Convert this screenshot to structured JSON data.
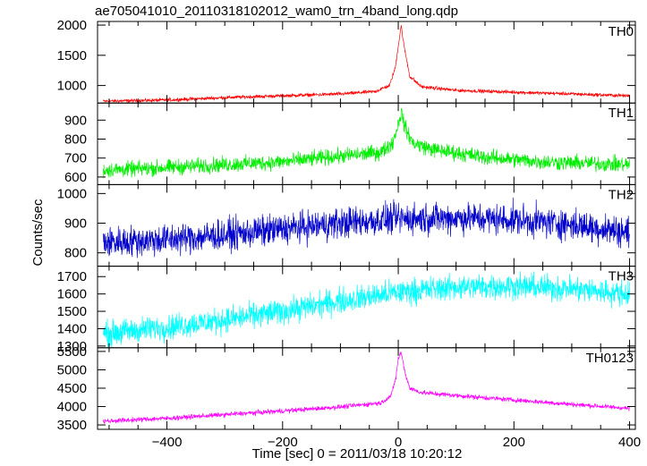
{
  "chart_data": {
    "type": "line",
    "title": "ae705041010_20110318102012_wam0_trn_4band_long.qdp",
    "xlabel": "Time [sec] 0 = 2011/03/18 10:20:12",
    "ylabel": "Counts/sec",
    "xlim": [
      -520,
      410
    ],
    "xticks": [
      -400,
      -200,
      0,
      200,
      400
    ],
    "grid": false,
    "panels": [
      {
        "name": "TH0",
        "color": "#ff0000",
        "ylim": [
          710,
          2060
        ],
        "yticks": [
          1000,
          1500,
          2000
        ],
        "noise": 18,
        "points": [
          [
            -510,
            740
          ],
          [
            -400,
            760
          ],
          [
            -300,
            800
          ],
          [
            -200,
            830
          ],
          [
            -100,
            860
          ],
          [
            -40,
            900
          ],
          [
            -15,
            1000
          ],
          [
            -5,
            1300
          ],
          [
            0,
            1650
          ],
          [
            5,
            2000
          ],
          [
            10,
            1650
          ],
          [
            20,
            1150
          ],
          [
            40,
            980
          ],
          [
            100,
            920
          ],
          [
            200,
            890
          ],
          [
            300,
            860
          ],
          [
            400,
            830
          ]
        ]
      },
      {
        "name": "TH1",
        "color": "#00ee00",
        "ylim": [
          560,
          990
        ],
        "yticks": [
          600,
          700,
          800,
          900
        ],
        "noise": 25,
        "points": [
          [
            -510,
            635
          ],
          [
            -400,
            650
          ],
          [
            -300,
            665
          ],
          [
            -200,
            680
          ],
          [
            -100,
            710
          ],
          [
            -30,
            730
          ],
          [
            -10,
            780
          ],
          [
            0,
            880
          ],
          [
            5,
            940
          ],
          [
            12,
            860
          ],
          [
            25,
            780
          ],
          [
            60,
            745
          ],
          [
            150,
            705
          ],
          [
            250,
            680
          ],
          [
            400,
            665
          ]
        ]
      },
      {
        "name": "TH2",
        "color": "#0000cc",
        "ylim": [
          755,
          1030
        ],
        "yticks": [
          800,
          900,
          1000
        ],
        "noise": 32,
        "points": [
          [
            -510,
            835
          ],
          [
            -400,
            845
          ],
          [
            -300,
            860
          ],
          [
            -200,
            880
          ],
          [
            -100,
            900
          ],
          [
            0,
            915
          ],
          [
            100,
            918
          ],
          [
            200,
            912
          ],
          [
            300,
            895
          ],
          [
            400,
            870
          ]
        ]
      },
      {
        "name": "TH3",
        "color": "#00ffff",
        "ylim": [
          1290,
          1760
        ],
        "yticks": [
          1300,
          1400,
          1500,
          1600,
          1700
        ],
        "noise": 45,
        "points": [
          [
            -510,
            1370
          ],
          [
            -400,
            1410
          ],
          [
            -300,
            1450
          ],
          [
            -200,
            1500
          ],
          [
            -100,
            1560
          ],
          [
            0,
            1610
          ],
          [
            100,
            1640
          ],
          [
            200,
            1645
          ],
          [
            300,
            1630
          ],
          [
            400,
            1600
          ]
        ]
      },
      {
        "name": "TH0123",
        "color": "#ff00ff",
        "ylim": [
          3380,
          5600
        ],
        "yticks": [
          3500,
          4000,
          4500,
          5000,
          5500
        ],
        "noise": 40,
        "points": [
          [
            -510,
            3600
          ],
          [
            -400,
            3680
          ],
          [
            -300,
            3780
          ],
          [
            -200,
            3880
          ],
          [
            -100,
            3990
          ],
          [
            -30,
            4100
          ],
          [
            -12,
            4300
          ],
          [
            -4,
            4800
          ],
          [
            0,
            5300
          ],
          [
            5,
            5480
          ],
          [
            12,
            4900
          ],
          [
            20,
            4500
          ],
          [
            40,
            4380
          ],
          [
            100,
            4300
          ],
          [
            200,
            4180
          ],
          [
            300,
            4060
          ],
          [
            400,
            3950
          ]
        ]
      }
    ]
  }
}
